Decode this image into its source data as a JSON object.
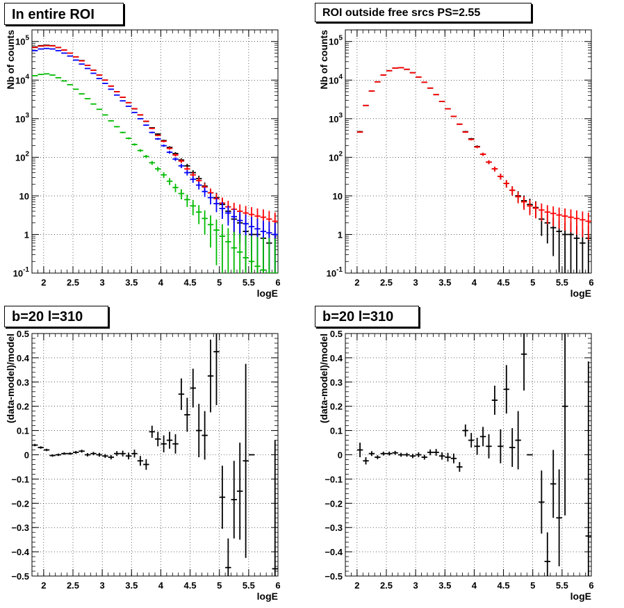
{
  "chart_data": [
    {
      "type": "scatter",
      "title": "In entire ROI",
      "xlabel": "logE",
      "ylabel": "Nb of counts",
      "xlim": [
        1.8,
        6.0
      ],
      "ylim": [
        0.1,
        200000
      ],
      "yscale": "log",
      "grid": true,
      "xticks": [
        "2",
        "2.5",
        "3",
        "3.5",
        "4",
        "4.5",
        "5",
        "5.5",
        "6"
      ],
      "yticks": [
        "10^-1",
        "1",
        "10",
        "10^2",
        "10^3",
        "10^4",
        "10^5"
      ],
      "series": [
        {
          "color": "#000000",
          "x": [
            1.85,
            1.95,
            2.05,
            2.15,
            2.25,
            2.35,
            2.45,
            2.55,
            2.65,
            2.75,
            2.85,
            2.95,
            3.05,
            3.15,
            3.25,
            3.35,
            3.45,
            3.55,
            3.65,
            3.75,
            3.85,
            3.95,
            4.05,
            4.15,
            4.25,
            4.35,
            4.45,
            4.55,
            4.65,
            4.75,
            4.85,
            4.95,
            5.05,
            5.15,
            5.25,
            5.35,
            5.45,
            5.55,
            5.65,
            5.75,
            5.85,
            5.95
          ],
          "y": [
            72000,
            78000,
            80000,
            78000,
            70000,
            60000,
            50000,
            40000,
            32000,
            24000,
            18000,
            13500,
            10000,
            7000,
            5000,
            3600,
            2600,
            1800,
            1250,
            850,
            580,
            400,
            270,
            180,
            125,
            85,
            60,
            40,
            28,
            18,
            12,
            9,
            6,
            4,
            2.5,
            2,
            1.2,
            1,
            1,
            0.8,
            0.6,
            1
          ]
        },
        {
          "color": "#ff0000",
          "x": [
            1.85,
            1.95,
            2.05,
            2.15,
            2.25,
            2.35,
            2.45,
            2.55,
            2.65,
            2.75,
            2.85,
            2.95,
            3.05,
            3.15,
            3.25,
            3.35,
            3.45,
            3.55,
            3.65,
            3.75,
            3.85,
            3.95,
            4.05,
            4.15,
            4.25,
            4.35,
            4.45,
            4.55,
            4.65,
            4.75,
            4.85,
            4.95,
            5.05,
            5.15,
            5.25,
            5.35,
            5.45,
            5.55,
            5.65,
            5.75,
            5.85,
            5.95
          ],
          "y": [
            70000,
            76000,
            78000,
            77000,
            70000,
            60000,
            50000,
            40000,
            31500,
            24000,
            18000,
            13500,
            10000,
            7000,
            5000,
            3600,
            2600,
            1820,
            1260,
            860,
            560,
            370,
            260,
            170,
            115,
            80,
            50,
            35,
            25,
            17,
            12,
            8.5,
            6.5,
            5.2,
            4.5,
            4,
            3.6,
            3.3,
            3,
            2.8,
            2.5,
            2.2
          ]
        },
        {
          "color": "#0000ff",
          "x": [
            1.85,
            1.95,
            2.05,
            2.15,
            2.25,
            2.35,
            2.45,
            2.55,
            2.65,
            2.75,
            2.85,
            2.95,
            3.05,
            3.15,
            3.25,
            3.35,
            3.45,
            3.55,
            3.65,
            3.75,
            3.85,
            3.95,
            4.05,
            4.15,
            4.25,
            4.35,
            4.45,
            4.55,
            4.65,
            4.75,
            4.85,
            4.95,
            5.05,
            5.15,
            5.25,
            5.35,
            5.45,
            5.55,
            5.65,
            5.75,
            5.85,
            5.95
          ],
          "y": [
            58000,
            64000,
            66000,
            64000,
            58000,
            50000,
            42000,
            33000,
            26000,
            20000,
            15000,
            11000,
            8200,
            5800,
            4100,
            2900,
            2100,
            1450,
            1000,
            680,
            440,
            300,
            200,
            135,
            90,
            60,
            40,
            27,
            19,
            13,
            9,
            6.3,
            4.7,
            3.6,
            2.9,
            2.3,
            1.9,
            1.6,
            1.4,
            1.2,
            1.1,
            1
          ]
        },
        {
          "color": "#00bb00",
          "x": [
            1.85,
            1.95,
            2.05,
            2.15,
            2.25,
            2.35,
            2.45,
            2.55,
            2.65,
            2.75,
            2.85,
            2.95,
            3.05,
            3.15,
            3.25,
            3.35,
            3.45,
            3.55,
            3.65,
            3.75,
            3.85,
            3.95,
            4.05,
            4.15,
            4.25,
            4.35,
            4.45,
            4.55,
            4.65,
            4.75,
            4.85,
            4.95,
            5.05,
            5.15,
            5.25,
            5.35,
            5.45,
            5.55,
            5.65,
            5.75,
            5.85,
            5.95
          ],
          "y": [
            13000,
            14000,
            14500,
            13500,
            11500,
            9500,
            7600,
            5800,
            4400,
            3300,
            2400,
            1750,
            1250,
            880,
            620,
            440,
            310,
            215,
            150,
            105,
            72,
            50,
            35,
            24,
            16.5,
            11.5,
            8,
            5.5,
            3.8,
            2.6,
            1.8,
            1.3,
            0.9,
            0.65,
            0.45,
            0.35,
            0.25,
            0.2,
            0.15,
            0.12,
            0.1,
            0.08
          ]
        }
      ]
    },
    {
      "type": "scatter",
      "title": "ROI outside free srcs PS=2.55",
      "xlabel": "logE",
      "ylabel": "Nb of counts",
      "xlim": [
        1.8,
        6.0
      ],
      "ylim": [
        0.1,
        200000
      ],
      "yscale": "log",
      "grid": true,
      "xticks": [
        "2",
        "2.5",
        "3",
        "3.5",
        "4",
        "4.5",
        "5",
        "5.5",
        "6"
      ],
      "yticks": [
        "10^-1",
        "1",
        "10",
        "10^2",
        "10^3",
        "10^4",
        "10^5"
      ],
      "series": [
        {
          "color": "#000000",
          "x": [
            2.05,
            2.15,
            2.25,
            2.35,
            2.45,
            2.55,
            2.65,
            2.75,
            2.85,
            2.95,
            3.05,
            3.15,
            3.25,
            3.35,
            3.45,
            3.55,
            3.65,
            3.75,
            3.85,
            3.95,
            4.05,
            4.15,
            4.25,
            4.35,
            4.45,
            4.55,
            4.65,
            4.75,
            4.85,
            4.95,
            5.05,
            5.15,
            5.25,
            5.35,
            5.45,
            5.55,
            5.65,
            5.75,
            5.85,
            5.95
          ],
          "y": [
            460,
            2200,
            5200,
            9000,
            13500,
            17500,
            20500,
            21000,
            19000,
            15500,
            12000,
            8800,
            6200,
            4200,
            2800,
            1800,
            1150,
            720,
            460,
            300,
            190,
            120,
            75,
            50,
            32,
            21,
            14,
            10,
            7.5,
            6,
            5,
            2.5,
            2,
            1.5,
            1.2,
            1,
            1,
            0.8,
            0.6,
            0.8
          ]
        },
        {
          "color": "#ff0000",
          "x": [
            2.05,
            2.15,
            2.25,
            2.35,
            2.45,
            2.55,
            2.65,
            2.75,
            2.85,
            2.95,
            3.05,
            3.15,
            3.25,
            3.35,
            3.45,
            3.55,
            3.65,
            3.75,
            3.85,
            3.95,
            4.05,
            4.15,
            4.25,
            4.35,
            4.45,
            4.55,
            4.65,
            4.75,
            4.85,
            4.95,
            5.05,
            5.15,
            5.25,
            5.35,
            5.45,
            5.55,
            5.65,
            5.75,
            5.85,
            5.95
          ],
          "y": [
            450,
            2200,
            5200,
            9000,
            13500,
            17500,
            20500,
            21000,
            19000,
            15500,
            12000,
            8800,
            6200,
            4200,
            2800,
            1800,
            1150,
            720,
            450,
            290,
            185,
            120,
            75,
            50,
            32,
            21,
            14,
            9.5,
            7,
            5.5,
            4.8,
            4.3,
            3.8,
            3.5,
            3.2,
            3,
            2.8,
            2.6,
            2.4,
            2.2
          ]
        }
      ]
    },
    {
      "type": "scatter",
      "title": "b=20 l=310",
      "xlabel": "logE",
      "ylabel": "(data-model)/model",
      "xlim": [
        1.8,
        6.0
      ],
      "ylim": [
        -0.5,
        0.5
      ],
      "grid": true,
      "xticks": [
        "2",
        "2.5",
        "3",
        "3.5",
        "4",
        "4.5",
        "5",
        "5.5",
        "6"
      ],
      "yticks": [
        "−0.5",
        "−0.4",
        "−0.3",
        "−0.2",
        "−0.1",
        "0",
        "0.1",
        "0.2",
        "0.3",
        "0.4",
        "0.5"
      ],
      "series": [
        {
          "color": "#000000",
          "x": [
            1.85,
            1.95,
            2.05,
            2.15,
            2.25,
            2.35,
            2.45,
            2.55,
            2.65,
            2.75,
            2.85,
            2.95,
            3.05,
            3.15,
            3.25,
            3.35,
            3.45,
            3.55,
            3.65,
            3.75,
            3.85,
            3.95,
            4.05,
            4.15,
            4.25,
            4.35,
            4.45,
            4.55,
            4.65,
            4.75,
            4.85,
            4.95,
            5.05,
            5.15,
            5.25,
            5.35,
            5.45,
            5.55,
            5.95
          ],
          "y": [
            0.04,
            0.03,
            0.02,
            -0.003,
            0.0,
            0.005,
            0.005,
            0.01,
            0.015,
            0.0,
            0.005,
            0.0,
            -0.005,
            -0.01,
            0.005,
            0.005,
            -0.005,
            0.005,
            -0.025,
            -0.04,
            0.095,
            0.065,
            0.045,
            0.06,
            0.045,
            0.25,
            0.165,
            0.275,
            0.1,
            0.08,
            0.325,
            0.425,
            -0.175,
            -0.465,
            -0.185,
            -0.15,
            -0.025,
            0.0,
            -0.47
          ],
          "yerr": [
            0.005,
            0.005,
            0.005,
            0.005,
            0.005,
            0.005,
            0.005,
            0.006,
            0.006,
            0.007,
            0.007,
            0.008,
            0.008,
            0.009,
            0.01,
            0.012,
            0.014,
            0.016,
            0.02,
            0.022,
            0.025,
            0.03,
            0.035,
            0.035,
            0.04,
            0.065,
            0.07,
            0.08,
            0.11,
            0.1,
            0.15,
            0.22,
            0.13,
            0.12,
            0.16,
            0.2,
            0.4,
            0.0,
            0.53
          ]
        }
      ]
    },
    {
      "type": "scatter",
      "title": "b=20 l=310",
      "xlabel": "logE",
      "ylabel": "(data-model)/model",
      "xlim": [
        1.8,
        6.0
      ],
      "ylim": [
        -0.5,
        0.5
      ],
      "grid": true,
      "xticks": [
        "2",
        "2.5",
        "3",
        "3.5",
        "4",
        "4.5",
        "5",
        "5.5",
        "6"
      ],
      "yticks": [
        "−0.5",
        "−0.4",
        "−0.3",
        "−0.2",
        "−0.1",
        "0",
        "0.1",
        "0.2",
        "0.3",
        "0.4",
        "0.5"
      ],
      "series": [
        {
          "color": "#000000",
          "x": [
            2.05,
            2.15,
            2.25,
            2.35,
            2.45,
            2.55,
            2.65,
            2.75,
            2.85,
            2.95,
            3.05,
            3.15,
            3.25,
            3.35,
            3.45,
            3.55,
            3.65,
            3.75,
            3.85,
            3.95,
            4.05,
            4.15,
            4.25,
            4.35,
            4.45,
            4.55,
            4.65,
            4.75,
            4.85,
            4.95,
            5.15,
            5.25,
            5.35,
            5.45,
            5.55,
            5.95
          ],
          "y": [
            0.02,
            -0.025,
            0.005,
            -0.01,
            0.005,
            0.005,
            0.008,
            0.0,
            0.0,
            -0.005,
            0.0,
            -0.01,
            0.01,
            0.01,
            -0.005,
            -0.01,
            -0.015,
            -0.05,
            0.1,
            0.06,
            0.035,
            0.075,
            0.035,
            0.225,
            0.035,
            0.27,
            0.03,
            0.06,
            0.415,
            0.0,
            -0.195,
            -0.44,
            -0.12,
            -0.26,
            0.2,
            -0.335
          ],
          "yerr": [
            0.03,
            0.015,
            0.01,
            0.008,
            0.008,
            0.008,
            0.008,
            0.008,
            0.008,
            0.009,
            0.01,
            0.01,
            0.012,
            0.014,
            0.015,
            0.018,
            0.02,
            0.02,
            0.025,
            0.03,
            0.035,
            0.04,
            0.05,
            0.06,
            0.07,
            0.1,
            0.08,
            0.12,
            0.15,
            0.0,
            0.13,
            0.12,
            0.14,
            0.2,
            0.45,
            0.72
          ]
        }
      ]
    }
  ]
}
